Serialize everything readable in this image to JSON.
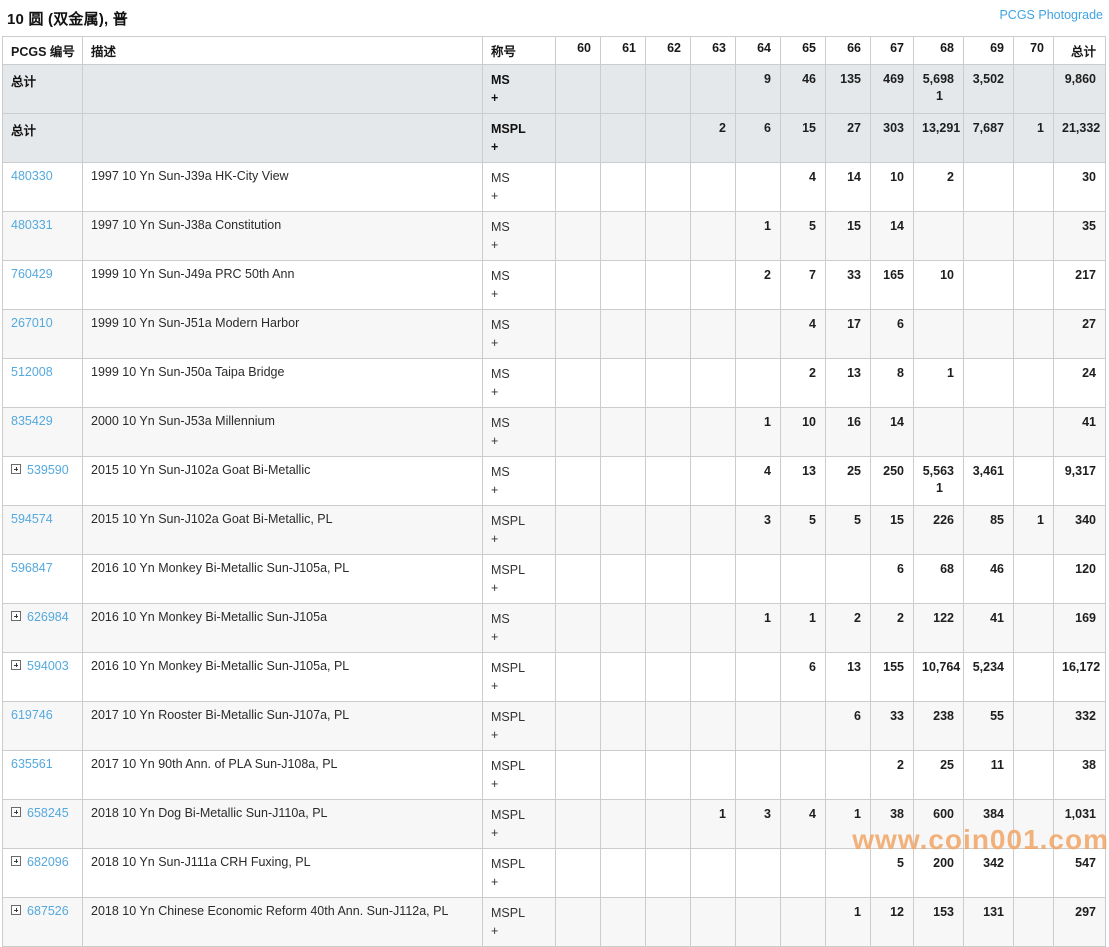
{
  "page": {
    "title": "10 圆 (双金属), 普",
    "photograde_link": "PCGS Photograde",
    "watermark": "www.coin001.com"
  },
  "table": {
    "headers": [
      "PCGS 编号",
      "描述",
      "称号",
      "60",
      "61",
      "62",
      "63",
      "64",
      "65",
      "66",
      "67",
      "68",
      "69",
      "70",
      "总计"
    ],
    "total_rows": [
      {
        "label": "总计",
        "desig": "MS",
        "desigPlus": "+",
        "grades": [
          "",
          "",
          "",
          "",
          "9",
          "46",
          "135",
          "469",
          "5,698",
          "3,502",
          ""
        ],
        "plus": {
          "8": "1"
        },
        "total": "9,860"
      },
      {
        "label": "总计",
        "desig": "MSPL",
        "desigPlus": "+",
        "grades": [
          "",
          "",
          "",
          "2",
          "6",
          "15",
          "27",
          "303",
          "13,291",
          "7,687",
          "1"
        ],
        "plus": {},
        "total": "21,332"
      }
    ],
    "rows": [
      {
        "number": "480330",
        "expand": false,
        "desc": "1997 10 Yn Sun-J39a HK-City View",
        "desig": "MS",
        "desigPlus": "+",
        "grades": [
          "",
          "",
          "",
          "",
          "",
          "4",
          "14",
          "10",
          "2",
          "",
          ""
        ],
        "plus": {},
        "total": "30"
      },
      {
        "number": "480331",
        "expand": false,
        "desc": "1997 10 Yn Sun-J38a Constitution",
        "desig": "MS",
        "desigPlus": "+",
        "grades": [
          "",
          "",
          "",
          "",
          "1",
          "5",
          "15",
          "14",
          "",
          "",
          ""
        ],
        "plus": {},
        "total": "35"
      },
      {
        "number": "760429",
        "expand": false,
        "desc": "1999 10 Yn Sun-J49a PRC 50th Ann",
        "desig": "MS",
        "desigPlus": "+",
        "grades": [
          "",
          "",
          "",
          "",
          "2",
          "7",
          "33",
          "165",
          "10",
          "",
          ""
        ],
        "plus": {},
        "total": "217"
      },
      {
        "number": "267010",
        "expand": false,
        "desc": "1999 10 Yn Sun-J51a Modern Harbor",
        "desig": "MS",
        "desigPlus": "+",
        "grades": [
          "",
          "",
          "",
          "",
          "",
          "4",
          "17",
          "6",
          "",
          "",
          ""
        ],
        "plus": {},
        "total": "27"
      },
      {
        "number": "512008",
        "expand": false,
        "desc": "1999 10 Yn Sun-J50a Taipa Bridge",
        "desig": "MS",
        "desigPlus": "+",
        "grades": [
          "",
          "",
          "",
          "",
          "",
          "2",
          "13",
          "8",
          "1",
          "",
          ""
        ],
        "plus": {},
        "total": "24"
      },
      {
        "number": "835429",
        "expand": false,
        "desc": "2000 10 Yn Sun-J53a Millennium",
        "desig": "MS",
        "desigPlus": "+",
        "grades": [
          "",
          "",
          "",
          "",
          "1",
          "10",
          "16",
          "14",
          "",
          "",
          ""
        ],
        "plus": {},
        "total": "41"
      },
      {
        "number": "539590",
        "expand": true,
        "desc": "2015 10 Yn Sun-J102a Goat Bi-Metallic",
        "desig": "MS",
        "desigPlus": "+",
        "grades": [
          "",
          "",
          "",
          "",
          "4",
          "13",
          "25",
          "250",
          "5,563",
          "3,461",
          ""
        ],
        "plus": {
          "8": "1"
        },
        "total": "9,317"
      },
      {
        "number": "594574",
        "expand": false,
        "desc": "2015 10 Yn Sun-J102a Goat Bi-Metallic, PL",
        "desig": "MSPL",
        "desigPlus": "+",
        "grades": [
          "",
          "",
          "",
          "",
          "3",
          "5",
          "5",
          "15",
          "226",
          "85",
          "1"
        ],
        "plus": {},
        "total": "340"
      },
      {
        "number": "596847",
        "expand": false,
        "desc": "2016 10 Yn Monkey Bi-Metallic Sun-J105a, PL",
        "desig": "MSPL",
        "desigPlus": "+",
        "grades": [
          "",
          "",
          "",
          "",
          "",
          "",
          "",
          "6",
          "68",
          "46",
          ""
        ],
        "plus": {},
        "total": "120"
      },
      {
        "number": "626984",
        "expand": true,
        "desc": "2016 10 Yn Monkey Bi-Metallic Sun-J105a",
        "desig": "MS",
        "desigPlus": "+",
        "grades": [
          "",
          "",
          "",
          "",
          "1",
          "1",
          "2",
          "2",
          "122",
          "41",
          ""
        ],
        "plus": {},
        "total": "169"
      },
      {
        "number": "594003",
        "expand": true,
        "desc": "2016 10 Yn Monkey Bi-Metallic Sun-J105a, PL",
        "desig": "MSPL",
        "desigPlus": "+",
        "grades": [
          "",
          "",
          "",
          "",
          "",
          "6",
          "13",
          "155",
          "10,764",
          "5,234",
          ""
        ],
        "plus": {},
        "total": "16,172"
      },
      {
        "number": "619746",
        "expand": false,
        "desc": "2017 10 Yn Rooster Bi-Metallic Sun-J107a, PL",
        "desig": "MSPL",
        "desigPlus": "+",
        "grades": [
          "",
          "",
          "",
          "",
          "",
          "",
          "6",
          "33",
          "238",
          "55",
          ""
        ],
        "plus": {},
        "total": "332"
      },
      {
        "number": "635561",
        "expand": false,
        "desc": "2017 10 Yn 90th Ann. of PLA Sun-J108a, PL",
        "desig": "MSPL",
        "desigPlus": "+",
        "grades": [
          "",
          "",
          "",
          "",
          "",
          "",
          "",
          "2",
          "25",
          "11",
          ""
        ],
        "plus": {},
        "total": "38"
      },
      {
        "number": "658245",
        "expand": true,
        "desc": "2018 10 Yn Dog Bi-Metallic Sun-J110a, PL",
        "desig": "MSPL",
        "desigPlus": "+",
        "grades": [
          "",
          "",
          "",
          "1",
          "3",
          "4",
          "1",
          "38",
          "600",
          "384",
          ""
        ],
        "plus": {},
        "total": "1,031"
      },
      {
        "number": "682096",
        "expand": true,
        "desc": "2018 10 Yn Sun-J111a CRH Fuxing, PL",
        "desig": "MSPL",
        "desigPlus": "+",
        "grades": [
          "",
          "",
          "",
          "",
          "",
          "",
          "",
          "5",
          "200",
          "342",
          ""
        ],
        "plus": {},
        "total": "547"
      },
      {
        "number": "687526",
        "expand": true,
        "desc": "2018 10 Yn Chinese Economic Reform 40th Ann. Sun-J112a, PL",
        "desig": "MSPL",
        "desigPlus": "+",
        "grades": [
          "",
          "",
          "",
          "",
          "",
          "",
          "1",
          "12",
          "153",
          "131",
          ""
        ],
        "plus": {},
        "total": "297"
      }
    ]
  }
}
